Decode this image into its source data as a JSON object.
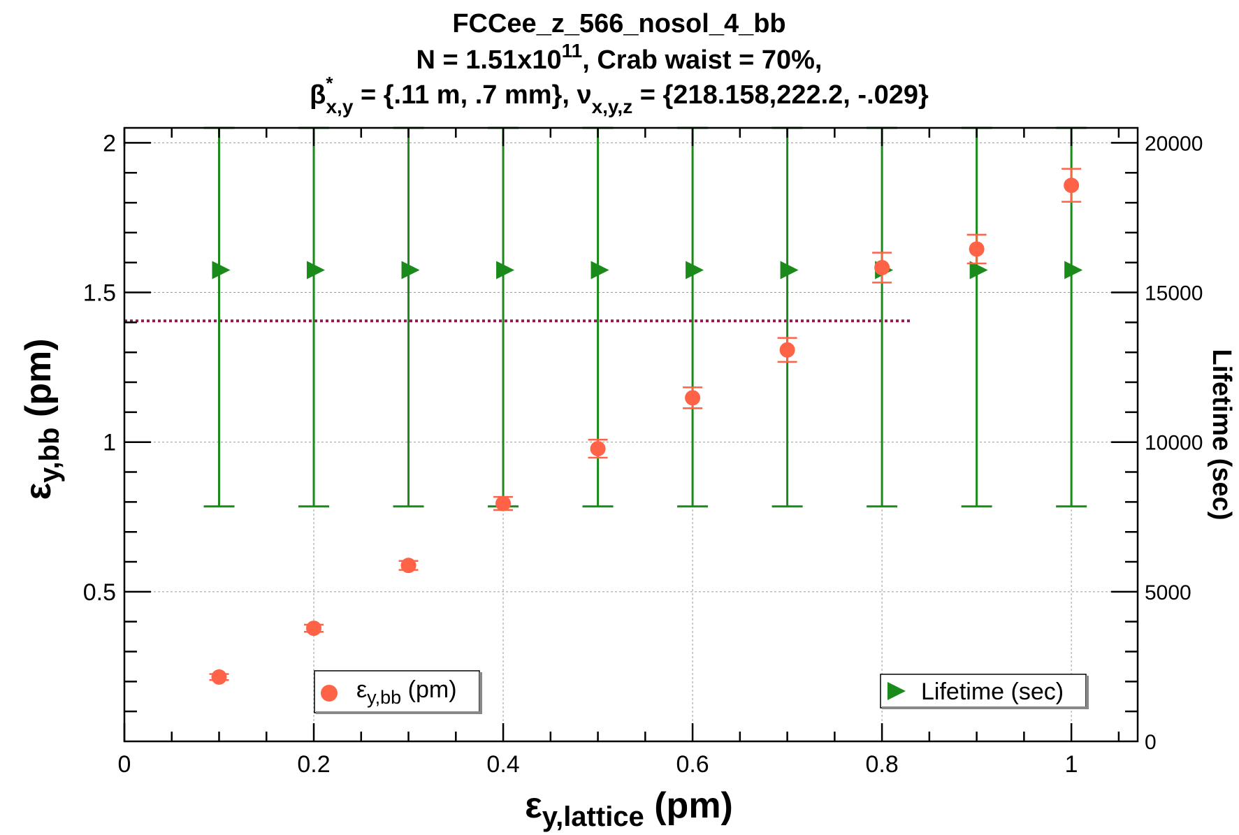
{
  "chart_data": {
    "type": "scatter",
    "title_lines": {
      "l1": "FCCee_z_566_nosol_4_bb",
      "l2_a": "N = 1.51x10",
      "l2_sup": "11",
      "l2_b": ", Crab waist =  70%,",
      "l3_beta": "β",
      "l3_star": "*",
      "l3_sub1": "x,y",
      "l3_mid": " = {.11 m, .7 mm}, ",
      "l3_nu": "ν",
      "l3_sub2": "x,y,z",
      "l3_end": " = {218.158,222.2,  -.029}"
    },
    "xlabel": {
      "main": "ε",
      "sub": "y,lattice",
      "unit": " (pm)"
    },
    "ylabel": {
      "main": "ε",
      "sub": "y,bb",
      "unit": " (pm)"
    },
    "y2label": "Lifetime (sec)",
    "xlim": [
      0,
      1.07
    ],
    "ylim": [
      0,
      2.05
    ],
    "y2lim": [
      0,
      20500
    ],
    "x_ticks": [
      0,
      0.2,
      0.4,
      0.6,
      0.8,
      1
    ],
    "x_tick_labels": [
      "0",
      "0.2",
      "0.4",
      "0.6",
      "0.8",
      "1"
    ],
    "y_ticks": [
      0.5,
      1,
      1.5,
      2
    ],
    "y_tick_labels": [
      "0.5",
      "1",
      "1.5",
      "2"
    ],
    "y2_ticks": [
      0,
      5000,
      10000,
      15000,
      20000
    ],
    "y2_tick_labels": [
      "0",
      "5000",
      "10000",
      "15000",
      "20000"
    ],
    "grid": true,
    "reference_line": {
      "y": 1.405,
      "x_start": 0,
      "x_end": 0.83,
      "color": "#8b1a5a",
      "style": "dotted"
    },
    "series": [
      {
        "name": "ε_y,bb (pm)",
        "legend_main": "ε",
        "legend_sub": "y,bb",
        "legend_unit": " (pm)",
        "axis": "left",
        "color": "#ff6347",
        "marker": "circle",
        "x": [
          0.1,
          0.2,
          0.3,
          0.4,
          0.5,
          0.6,
          0.7,
          0.8,
          0.9,
          1.0
        ],
        "y": [
          0.215,
          0.378,
          0.588,
          0.795,
          0.978,
          1.148,
          1.308,
          1.583,
          1.645,
          1.858
        ],
        "yerr": [
          0.01,
          0.012,
          0.015,
          0.022,
          0.03,
          0.035,
          0.04,
          0.05,
          0.048,
          0.055
        ]
      },
      {
        "name": "Lifetime (sec)",
        "legend_text": "Lifetime (sec)",
        "axis": "right",
        "color": "#1a8a1a",
        "marker": "triangle-right",
        "x": [
          0.1,
          0.2,
          0.3,
          0.4,
          0.5,
          0.6,
          0.7,
          0.8,
          0.9,
          1.0
        ],
        "y": [
          15750,
          15750,
          15750,
          15750,
          15750,
          15750,
          15750,
          15750,
          15750,
          15750
        ],
        "yerr_low": [
          7900,
          7900,
          7900,
          7900,
          7900,
          7900,
          7900,
          7900,
          7900,
          7900
        ],
        "yerr_high": [
          4750,
          4750,
          4750,
          4750,
          4750,
          4750,
          4750,
          4750,
          4750,
          4750
        ]
      }
    ],
    "legend_placement": "bottom"
  }
}
